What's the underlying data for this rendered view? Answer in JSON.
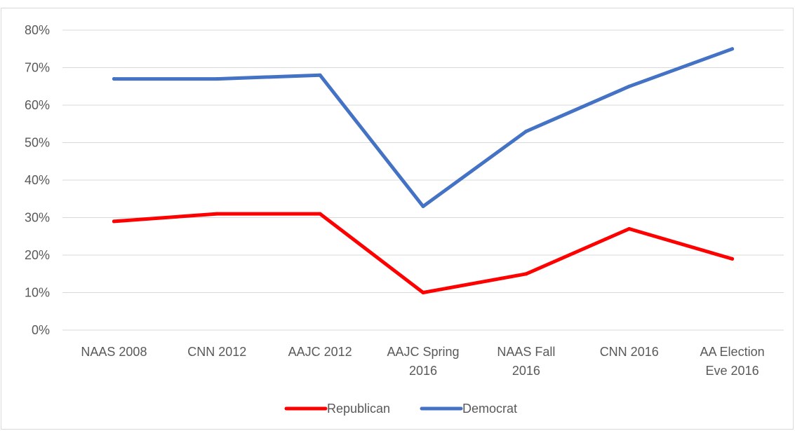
{
  "chart_data": {
    "type": "line",
    "title": "",
    "xlabel": "",
    "ylabel": "",
    "categories": [
      [
        "NAAS 2008"
      ],
      [
        "CNN 2012"
      ],
      [
        "AAJC 2012"
      ],
      [
        "AAJC Spring",
        "2016"
      ],
      [
        "NAAS Fall",
        "2016"
      ],
      [
        "CNN 2016"
      ],
      [
        "AA Election",
        "Eve 2016"
      ]
    ],
    "y_ticks": [
      0,
      10,
      20,
      30,
      40,
      50,
      60,
      70,
      80
    ],
    "y_tick_labels": [
      "0%",
      "10%",
      "20%",
      "30%",
      "40%",
      "50%",
      "60%",
      "70%",
      "80%"
    ],
    "ylim": [
      0,
      80
    ],
    "grid": true,
    "legend_position": "bottom",
    "series": [
      {
        "name": "Republican",
        "color": "#ff0000",
        "values": [
          29,
          31,
          31,
          10,
          15,
          27,
          19
        ]
      },
      {
        "name": "Democrat",
        "color": "#4472c4",
        "values": [
          67,
          67,
          68,
          33,
          53,
          65,
          75
        ]
      }
    ]
  }
}
